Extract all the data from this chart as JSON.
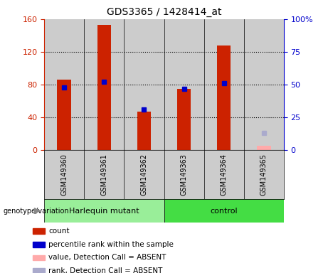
{
  "title": "GDS3365 / 1428414_at",
  "samples": [
    "GSM149360",
    "GSM149361",
    "GSM149362",
    "GSM149363",
    "GSM149364",
    "GSM149365"
  ],
  "count_values": [
    86,
    153,
    47,
    75,
    128,
    null
  ],
  "rank_values": [
    48,
    52,
    31,
    47,
    51,
    null
  ],
  "absent_value": 5,
  "absent_rank": 13,
  "left_ylim": [
    0,
    160
  ],
  "right_ylim": [
    0,
    100
  ],
  "left_yticks": [
    0,
    40,
    80,
    120,
    160
  ],
  "right_yticks": [
    0,
    25,
    50,
    75,
    100
  ],
  "right_yticklabels": [
    "0",
    "25",
    "50",
    "75",
    "100%"
  ],
  "left_color": "#cc2200",
  "right_color": "#0000cc",
  "absent_bar_color": "#ffaaaa",
  "absent_rank_color": "#aaaacc",
  "bar_width": 0.35,
  "groups": [
    {
      "label": "Harlequin mutant",
      "indices": [
        0,
        1,
        2
      ],
      "color": "#99ee99"
    },
    {
      "label": "control",
      "indices": [
        3,
        4,
        5
      ],
      "color": "#44dd44"
    }
  ],
  "group_label": "genotype/variation",
  "plot_bg_color": "#cccccc",
  "sample_area_bg": "#cccccc",
  "group_area_bg": "#99ee99",
  "legend_items": [
    {
      "label": "count",
      "color": "#cc2200"
    },
    {
      "label": "percentile rank within the sample",
      "color": "#0000cc"
    },
    {
      "label": "value, Detection Call = ABSENT",
      "color": "#ffaaaa"
    },
    {
      "label": "rank, Detection Call = ABSENT",
      "color": "#aaaacc"
    }
  ]
}
